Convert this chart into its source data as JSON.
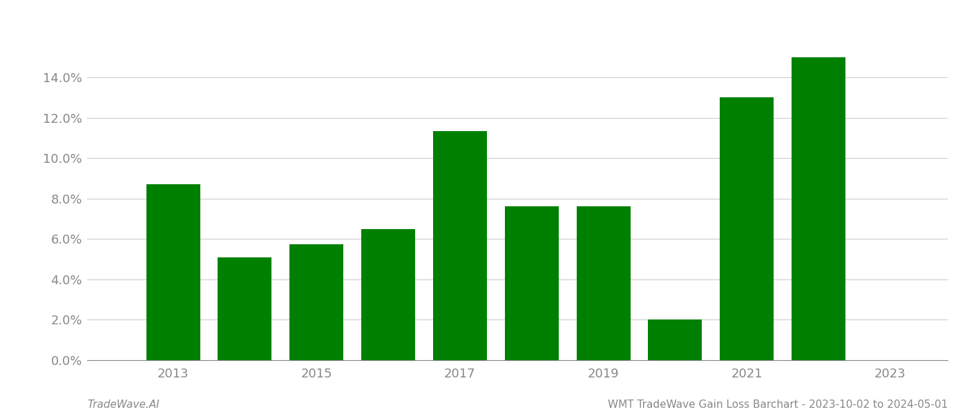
{
  "years": [
    2013,
    2014,
    2015,
    2016,
    2017,
    2018,
    2019,
    2020,
    2021,
    2022
  ],
  "values": [
    0.087,
    0.051,
    0.0575,
    0.065,
    0.1135,
    0.076,
    0.076,
    0.02,
    0.13,
    0.15
  ],
  "bar_color": "#008000",
  "background_color": "#ffffff",
  "grid_color": "#cccccc",
  "tick_label_color": "#888888",
  "footer_left": "TradeWave.AI",
  "footer_right": "WMT TradeWave Gain Loss Barchart - 2023-10-02 to 2024-05-01",
  "ylim": [
    0,
    0.168
  ],
  "yticks": [
    0.0,
    0.02,
    0.04,
    0.06,
    0.08,
    0.1,
    0.12,
    0.14
  ],
  "bar_width": 0.75,
  "figsize": [
    14.0,
    6.0
  ],
  "dpi": 100,
  "xlim": [
    2011.8,
    2023.8
  ],
  "xticks": [
    2013,
    2015,
    2017,
    2019,
    2021,
    2023
  ]
}
